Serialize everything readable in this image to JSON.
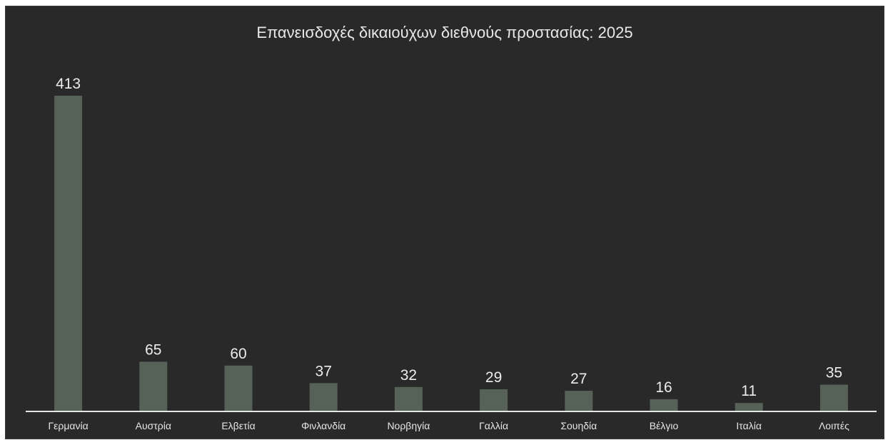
{
  "chart_data": {
    "type": "bar",
    "title": "Επανεισδοχές δικαιούχων διεθνούς προστασίας: 2025",
    "xlabel": "",
    "ylabel": "",
    "categories": [
      "Γερμανία",
      "Αυστρία",
      "Ελβετία",
      "Φινλανδία",
      "Νορβηγία",
      "Γαλλία",
      "Σουηδία",
      "Βέλγιο",
      "Ιταλία",
      "Λοιπές"
    ],
    "values": [
      413,
      65,
      60,
      37,
      32,
      29,
      27,
      16,
      11,
      35
    ],
    "data_labels": [
      "413",
      "65",
      "60",
      "37",
      "32",
      "29",
      "27",
      "16",
      "11",
      "35"
    ],
    "ylim": [
      0,
      413
    ],
    "grid": false,
    "legend": "none",
    "colors": {
      "background": "#292929",
      "bar": "#566157",
      "text": "#e8e8e8",
      "axis": "#e6e6e6"
    }
  }
}
